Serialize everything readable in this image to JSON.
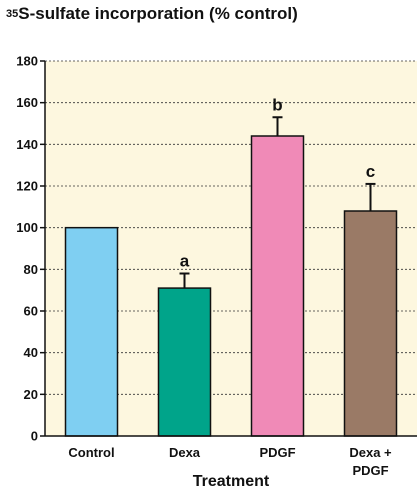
{
  "title_sup": "35",
  "title_main": "S-sulfate incorporation (% control)",
  "chart_data": {
    "type": "bar",
    "title": "35S-sulfate incorporation (% control)",
    "xlabel": "Treatment",
    "ylabel": "",
    "ylim": [
      0,
      180
    ],
    "yticks": [
      0,
      20,
      40,
      60,
      80,
      100,
      120,
      140,
      160,
      180
    ],
    "grid": true,
    "categories": [
      [
        "Control"
      ],
      [
        "Dexa"
      ],
      [
        "PDGF"
      ],
      [
        "Dexa +",
        "PDGF"
      ]
    ],
    "values": [
      100,
      71,
      144,
      108
    ],
    "errors": [
      0,
      7,
      9,
      13
    ],
    "significance": [
      "",
      "a",
      "b",
      "c"
    ],
    "colors": [
      "#7fcff2",
      "#00a48a",
      "#f08ab7",
      "#9a7a66"
    ],
    "plot_background": "#fdf7df"
  }
}
